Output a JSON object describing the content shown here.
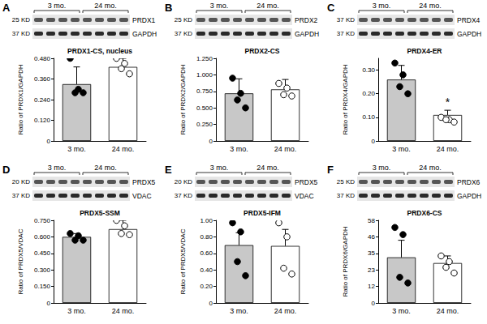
{
  "chart_data": [
    {
      "type": "bar",
      "panel": "A",
      "title": "PRDX1-CS, nucleus",
      "ylabel": "Ratio of PRDX1/GAPDH",
      "categories": [
        "3 mo.",
        "24 mo."
      ],
      "values": [
        0.33,
        0.43
      ],
      "errors": [
        0.1,
        0.05
      ],
      "colors": [
        "#c8c8c8",
        "#ffffff"
      ],
      "points": [
        {
          "category": "3 mo.",
          "values": [
            0.48,
            0.3,
            0.28,
            0.28
          ],
          "marker": "filled"
        },
        {
          "category": "24 mo.",
          "values": [
            0.48,
            0.45,
            0.42,
            0.39
          ],
          "marker": "open"
        }
      ],
      "ylim": [
        0,
        0.48
      ],
      "yticks": [
        0,
        {
          "value": 0.12,
          "label": "0.120"
        },
        {
          "value": 0.24,
          "label": "0.240"
        },
        {
          "value": 0.36,
          "label": "0.360"
        },
        {
          "value": 0.48,
          "label": "0.480"
        }
      ],
      "grid": false,
      "blot": {
        "groups": [
          "3 mo.",
          "24 mo."
        ],
        "bands": [
          {
            "size": "25 KD",
            "protein": "PRDX1"
          },
          {
            "size": "37 KD",
            "protein": "GAPDH"
          }
        ]
      }
    },
    {
      "type": "bar",
      "panel": "B",
      "title": "PRDX2-CS",
      "ylabel": "Ratio of PRDX2/GAPDH",
      "categories": [
        "3 mo.",
        "24 mo."
      ],
      "values": [
        0.72,
        0.78
      ],
      "errors": [
        0.22,
        0.15
      ],
      "colors": [
        "#c8c8c8",
        "#ffffff"
      ],
      "points": [
        {
          "category": "3 mo.",
          "values": [
            0.95,
            0.72,
            0.62,
            0.5
          ],
          "marker": "filled"
        },
        {
          "category": "24 mo.",
          "values": [
            0.87,
            0.8,
            0.7,
            0.68
          ],
          "marker": "open"
        }
      ],
      "ylim": [
        0,
        1.25
      ],
      "yticks": [
        0,
        {
          "value": 0.25,
          "label": "0.250"
        },
        {
          "value": 0.5,
          "label": "0.500"
        },
        {
          "value": 0.75,
          "label": "0.750"
        },
        {
          "value": 1,
          "label": "1.000"
        },
        {
          "value": 1.25,
          "label": "1.250"
        }
      ],
      "grid": false,
      "blot": {
        "groups": [
          "3 mo.",
          "24 mo."
        ],
        "bands": [
          {
            "size": "25 KD",
            "protein": "PRDX2"
          },
          {
            "size": "37 KD",
            "protein": "GAPDH"
          }
        ]
      }
    },
    {
      "type": "bar",
      "panel": "C",
      "title": "PRDX4-ER",
      "ylabel": "Ratio of PRDX4/GAPDH",
      "categories": [
        "3 mo.",
        "24 mo."
      ],
      "values": [
        0.26,
        0.11
      ],
      "errors": [
        0.06,
        0.02
      ],
      "colors": [
        "#c8c8c8",
        "#ffffff"
      ],
      "points": [
        {
          "category": "3 mo.",
          "values": [
            0.33,
            0.28,
            0.23,
            0.2
          ],
          "marker": "filled"
        },
        {
          "category": "24 mo.",
          "values": [
            0.1,
            0.09,
            0.09,
            0.08
          ],
          "marker": "open"
        }
      ],
      "annotations": [
        {
          "category": "24 mo.",
          "text": "*"
        }
      ],
      "ylim": [
        0,
        0.35
      ],
      "yticks": [
        0,
        {
          "value": 0.1,
          "label": "0.10"
        },
        {
          "value": 0.2,
          "label": "0.20"
        },
        {
          "value": 0.3,
          "label": "0.30"
        }
      ],
      "grid": false,
      "blot": {
        "groups": [
          "3 mo.",
          "24 mo."
        ],
        "bands": [
          {
            "size": "37 KD",
            "protein": "PRDX4"
          },
          {
            "size": "37 KD",
            "protein": "GAPDH"
          }
        ]
      }
    },
    {
      "type": "bar",
      "panel": "D",
      "title": "PRDX5-SSM",
      "ylabel": "Ratio of PRDX5/VDAC",
      "categories": [
        "3 mo.",
        "24 mo."
      ],
      "values": [
        0.6,
        0.67
      ],
      "errors": [
        0.03,
        0.08
      ],
      "colors": [
        "#c8c8c8",
        "#ffffff"
      ],
      "points": [
        {
          "category": "3 mo.",
          "values": [
            0.63,
            0.61,
            0.57,
            0.57
          ],
          "marker": "filled"
        },
        {
          "category": "24 mo.",
          "values": [
            0.75,
            0.7,
            0.63,
            0.62
          ],
          "marker": "open"
        }
      ],
      "ylim": [
        0,
        0.75
      ],
      "yticks": [
        0,
        {
          "value": 0.15,
          "label": "0.150"
        },
        {
          "value": 0.3,
          "label": "0.300"
        },
        {
          "value": 0.45,
          "label": "0.450"
        },
        {
          "value": 0.6,
          "label": "0.600"
        },
        {
          "value": 0.75,
          "label": "0.750"
        }
      ],
      "grid": false,
      "blot": {
        "groups": [
          "3 mo.",
          "24 mo."
        ],
        "bands": [
          {
            "size": "20 KD",
            "protein": "PRDX5"
          },
          {
            "size": "37 KD",
            "protein": "VDAC"
          }
        ]
      }
    },
    {
      "type": "bar",
      "panel": "E",
      "title": "PRDX5-IFM",
      "ylabel": "Ratio of PRDX5/VDAC",
      "categories": [
        "3 mo.",
        "24 mo."
      ],
      "values": [
        0.7,
        0.69
      ],
      "errors": [
        0.15,
        0.2
      ],
      "colors": [
        "#c8c8c8",
        "#ffffff"
      ],
      "points": [
        {
          "category": "3 mo.",
          "values": [
            0.97,
            0.86,
            0.5,
            0.33
          ],
          "marker": "filled"
        },
        {
          "category": "24 mo.",
          "values": [
            0.97,
            0.8,
            0.42,
            0.35
          ],
          "marker": "open"
        }
      ],
      "ylim": [
        0,
        1
      ],
      "yticks": [
        0,
        {
          "value": 0.2,
          "label": "0.20"
        },
        {
          "value": 0.4,
          "label": "0.40"
        },
        {
          "value": 0.6,
          "label": "0.60"
        },
        {
          "value": 0.8,
          "label": "0.80"
        },
        {
          "value": 1,
          "label": "1.00"
        }
      ],
      "grid": false,
      "blot": {
        "groups": [
          "3 mo.",
          "24 mo."
        ],
        "bands": [
          {
            "size": "20 KD",
            "protein": "PRDX5"
          },
          {
            "size": "37 KD",
            "protein": "VDAC"
          }
        ]
      }
    },
    {
      "type": "bar",
      "panel": "F",
      "title": "PRDX6-CS",
      "ylabel": "Ratio of PRDX6/GAPDH",
      "categories": [
        "3 mo.",
        "24 mo."
      ],
      "values": [
        32,
        28
      ],
      "errors": [
        12,
        5
      ],
      "colors": [
        "#c8c8c8",
        "#ffffff"
      ],
      "points": [
        {
          "category": "3 mo.",
          "values": [
            53,
            48,
            18,
            14
          ],
          "marker": "filled"
        },
        {
          "category": "24 mo.",
          "values": [
            33,
            29,
            25,
            21
          ],
          "marker": "open"
        }
      ],
      "ylim": [
        0,
        58
      ],
      "yticks": [
        0,
        {
          "value": 11.6,
          "label": "12"
        },
        {
          "value": 23.2,
          "label": "23"
        },
        {
          "value": 34.8,
          "label": "35"
        },
        {
          "value": 46.4,
          "label": "46"
        },
        58
      ],
      "grid": false,
      "blot": {
        "groups": [
          "3 mo.",
          "24 mo."
        ],
        "bands": [
          {
            "size": "25 KD",
            "protein": "PRDX6"
          },
          {
            "size": "37 KD",
            "protein": "GAPDH"
          }
        ]
      }
    }
  ]
}
